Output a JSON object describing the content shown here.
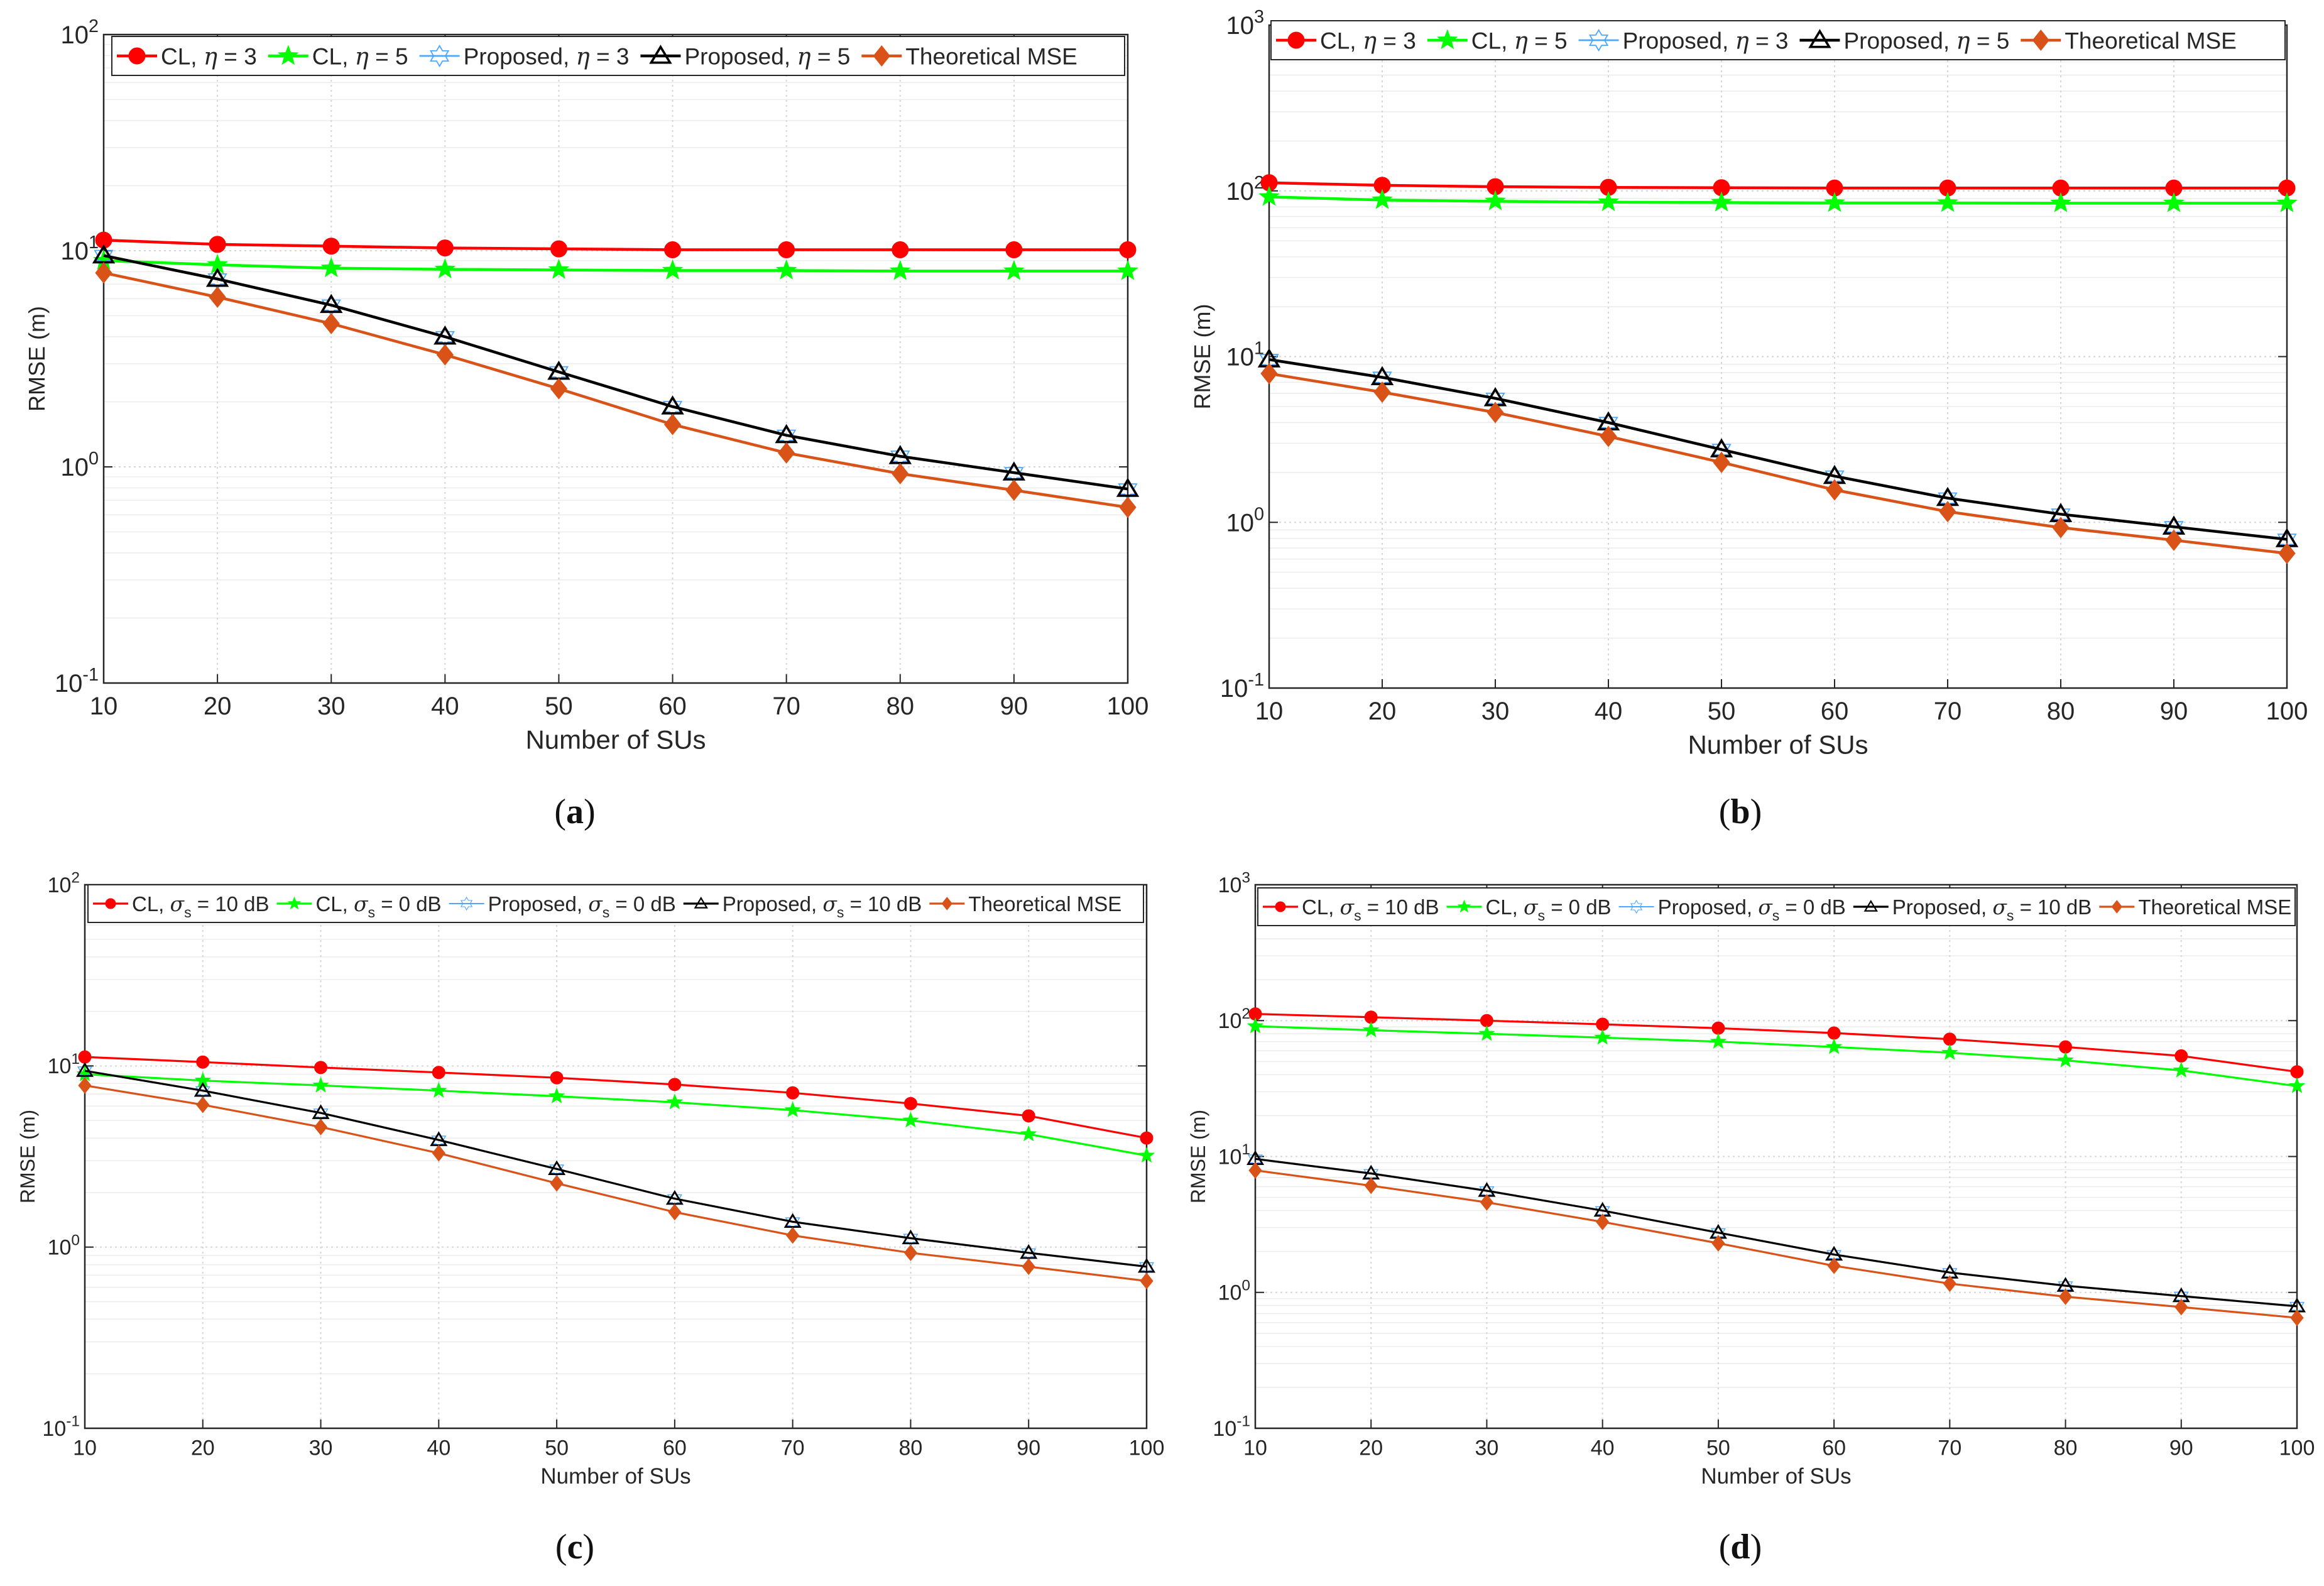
{
  "chart_data": [
    {
      "type": "line",
      "panel": "a",
      "caption": "(a)",
      "xlabel": "Number of SUs",
      "ylabel": "RMSE (m)",
      "yscale": "log",
      "ylim": [
        0.1,
        100
      ],
      "yticks": [
        0.1,
        1,
        10,
        100
      ],
      "xlim": [
        10,
        100
      ],
      "x": [
        10,
        20,
        30,
        40,
        50,
        60,
        70,
        80,
        90,
        100
      ],
      "grid": true,
      "legend_location": "top",
      "series": [
        {
          "name": "CL, η = 3",
          "label_parts": [
            "CL, ",
            "η",
            " =  3"
          ],
          "color": "#ff0000",
          "marker": "circle",
          "values": [
            11.2,
            10.7,
            10.5,
            10.3,
            10.2,
            10.1,
            10.1,
            10.1,
            10.1,
            10.1
          ]
        },
        {
          "name": "CL, η = 5",
          "label_parts": [
            "CL, ",
            "η",
            " =  5"
          ],
          "color": "#00ff00",
          "marker": "star",
          "values": [
            9.0,
            8.6,
            8.3,
            8.2,
            8.15,
            8.1,
            8.1,
            8.05,
            8.05,
            8.05
          ]
        },
        {
          "name": "Proposed, η = 3",
          "label_parts": [
            "Proposed, ",
            "η",
            " =  3"
          ],
          "color": "#4da6ff",
          "marker": "hexagram",
          "values": [
            9.5,
            7.4,
            5.6,
            4.0,
            2.75,
            1.9,
            1.4,
            1.12,
            0.94,
            0.79
          ]
        },
        {
          "name": "Proposed, η = 5",
          "label_parts": [
            "Proposed, ",
            "η",
            " =  5"
          ],
          "color": "#000000",
          "marker": "triangle",
          "values": [
            9.5,
            7.4,
            5.6,
            4.0,
            2.75,
            1.9,
            1.4,
            1.12,
            0.94,
            0.79
          ]
        },
        {
          "name": "Theoretical MSE",
          "label_parts": [
            "Theoretical MSE"
          ],
          "color": "#d95319",
          "marker": "diamond",
          "values": [
            7.9,
            6.1,
            4.6,
            3.3,
            2.3,
            1.57,
            1.16,
            0.93,
            0.78,
            0.65
          ]
        }
      ]
    },
    {
      "type": "line",
      "panel": "b",
      "caption": "(b)",
      "xlabel": "Number of SUs",
      "ylabel": "RMSE (m)",
      "yscale": "log",
      "ylim": [
        0.1,
        1000
      ],
      "yticks": [
        0.1,
        1,
        10,
        100,
        1000
      ],
      "xlim": [
        10,
        100
      ],
      "x": [
        10,
        20,
        30,
        40,
        50,
        60,
        70,
        80,
        90,
        100
      ],
      "grid": true,
      "legend_location": "top",
      "series": [
        {
          "name": "CL, η = 3",
          "label_parts": [
            "CL, ",
            "η",
            " =  3"
          ],
          "color": "#ff0000",
          "marker": "circle",
          "values": [
            112,
            108,
            106,
            105,
            104.5,
            104,
            104,
            104,
            104,
            104
          ]
        },
        {
          "name": "CL, η = 5",
          "label_parts": [
            "CL, ",
            "η",
            " =  5"
          ],
          "color": "#00ff00",
          "marker": "star",
          "values": [
            92,
            88,
            86.5,
            85.5,
            85,
            84.5,
            84.5,
            84.2,
            84.2,
            84.2
          ]
        },
        {
          "name": "Proposed, η = 3",
          "label_parts": [
            "Proposed, ",
            "η",
            " =  3"
          ],
          "color": "#4da6ff",
          "marker": "hexagram",
          "values": [
            9.6,
            7.5,
            5.6,
            4.0,
            2.75,
            1.9,
            1.4,
            1.12,
            0.94,
            0.79
          ]
        },
        {
          "name": "Proposed, η = 5",
          "label_parts": [
            "Proposed, ",
            "η",
            " =  5"
          ],
          "color": "#000000",
          "marker": "triangle",
          "values": [
            9.6,
            7.5,
            5.6,
            4.0,
            2.75,
            1.9,
            1.4,
            1.12,
            0.94,
            0.79
          ]
        },
        {
          "name": "Theoretical MSE",
          "label_parts": [
            "Theoretical MSE"
          ],
          "color": "#d95319",
          "marker": "diamond",
          "values": [
            7.9,
            6.1,
            4.6,
            3.3,
            2.3,
            1.57,
            1.16,
            0.93,
            0.78,
            0.65
          ]
        }
      ]
    },
    {
      "type": "line",
      "panel": "c",
      "caption": "(c)",
      "xlabel": "Number of SUs",
      "ylabel": "RMSE (m)",
      "yscale": "log",
      "ylim": [
        0.1,
        100
      ],
      "yticks": [
        0.1,
        1,
        10,
        100
      ],
      "xlim": [
        10,
        100
      ],
      "x": [
        10,
        20,
        30,
        40,
        50,
        60,
        70,
        80,
        90,
        100
      ],
      "grid": true,
      "legend_location": "top",
      "series": [
        {
          "name": "CL, σs = 10 dB",
          "label_parts": [
            "CL, ",
            "σ",
            "s",
            " =  10 dB"
          ],
          "color": "#ff0000",
          "marker": "circle",
          "values": [
            11.2,
            10.5,
            9.8,
            9.2,
            8.6,
            7.9,
            7.1,
            6.2,
            5.3,
            4.0
          ]
        },
        {
          "name": "CL, σs = 0 dB",
          "label_parts": [
            "CL, ",
            "σ",
            "s",
            " =  0 dB"
          ],
          "color": "#00ff00",
          "marker": "star",
          "values": [
            9.0,
            8.3,
            7.8,
            7.3,
            6.8,
            6.3,
            5.7,
            5.0,
            4.2,
            3.2
          ]
        },
        {
          "name": "Proposed, σs = 0 dB",
          "label_parts": [
            "Proposed, ",
            "σ",
            "s",
            " =  0 dB"
          ],
          "color": "#4da6ff",
          "marker": "hexagram",
          "values": [
            9.4,
            7.3,
            5.5,
            3.9,
            2.7,
            1.85,
            1.38,
            1.12,
            0.93,
            0.78
          ]
        },
        {
          "name": "Proposed, σs = 10 dB",
          "label_parts": [
            "Proposed, ",
            "σ",
            "s",
            " =  10 dB"
          ],
          "color": "#000000",
          "marker": "triangle",
          "values": [
            9.4,
            7.3,
            5.5,
            3.9,
            2.7,
            1.85,
            1.38,
            1.12,
            0.93,
            0.78
          ]
        },
        {
          "name": "Theoretical MSE",
          "label_parts": [
            "Theoretical MSE"
          ],
          "color": "#d95319",
          "marker": "diamond",
          "values": [
            7.8,
            6.1,
            4.6,
            3.3,
            2.25,
            1.56,
            1.16,
            0.93,
            0.78,
            0.65
          ]
        }
      ]
    },
    {
      "type": "line",
      "panel": "d",
      "caption": "(d)",
      "xlabel": "Number of SUs",
      "ylabel": "RMSE (m)",
      "yscale": "log",
      "ylim": [
        0.1,
        1000
      ],
      "yticks": [
        0.1,
        1,
        10,
        100,
        1000
      ],
      "xlim": [
        10,
        100
      ],
      "x": [
        10,
        20,
        30,
        40,
        50,
        60,
        70,
        80,
        90,
        100
      ],
      "grid": true,
      "legend_location": "top",
      "series": [
        {
          "name": "CL, σs = 10 dB",
          "label_parts": [
            "CL, ",
            "σ",
            "s",
            " =  10 dB"
          ],
          "color": "#ff0000",
          "marker": "circle",
          "values": [
            112,
            106,
            100,
            94,
            88,
            81,
            73,
            64,
            55,
            42
          ]
        },
        {
          "name": "CL, σs = 0 dB",
          "label_parts": [
            "CL, ",
            "σ",
            "s",
            " =  0 dB"
          ],
          "color": "#00ff00",
          "marker": "star",
          "values": [
            91,
            85,
            80,
            75,
            70,
            64,
            58,
            51,
            43,
            33
          ]
        },
        {
          "name": "Proposed, σs = 0 dB",
          "label_parts": [
            "Proposed, ",
            "σ",
            "s",
            " =  0 dB"
          ],
          "color": "#4da6ff",
          "marker": "hexagram",
          "values": [
            9.6,
            7.5,
            5.6,
            4.0,
            2.75,
            1.9,
            1.4,
            1.12,
            0.94,
            0.79
          ]
        },
        {
          "name": "Proposed, σs = 10 dB",
          "label_parts": [
            "Proposed, ",
            "σ",
            "s",
            " =  10 dB"
          ],
          "color": "#000000",
          "marker": "triangle",
          "values": [
            9.6,
            7.5,
            5.6,
            4.0,
            2.75,
            1.9,
            1.4,
            1.12,
            0.94,
            0.79
          ]
        },
        {
          "name": "Theoretical MSE",
          "label_parts": [
            "Theoretical MSE"
          ],
          "color": "#d95319",
          "marker": "diamond",
          "values": [
            7.9,
            6.1,
            4.6,
            3.3,
            2.3,
            1.57,
            1.16,
            0.93,
            0.78,
            0.65
          ]
        }
      ]
    }
  ]
}
